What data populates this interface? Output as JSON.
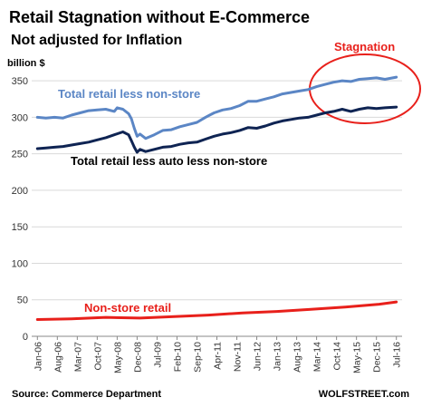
{
  "chart_data": {
    "type": "line",
    "title": "Retail Stagnation without E-Commerce",
    "subtitle": "Not adjusted for Inflation",
    "ylabel": "billion $",
    "ylim": [
      0,
      370
    ],
    "yticks": [
      0,
      50,
      100,
      150,
      200,
      250,
      300,
      350
    ],
    "grid": true,
    "x_tick_labels": [
      "Jan-06",
      "Aug-06",
      "Mar-07",
      "Oct-07",
      "May-08",
      "Dec-08",
      "Jul-09",
      "Feb-10",
      "Sep-10",
      "Apr-11",
      "Nov-11",
      "Jun-12",
      "Jan-13",
      "Aug-13",
      "Mar-14",
      "Oct-14",
      "May-15",
      "Dec-15",
      "Jul-16"
    ],
    "x_start": "Jan-06",
    "x_end": "Jul-16",
    "series": [
      {
        "name": "Total retail less non-store",
        "color": "#5b86c5",
        "values": [
          {
            "date": "Jan-06",
            "value": 300
          },
          {
            "date": "Apr-06",
            "value": 299
          },
          {
            "date": "Jul-06",
            "value": 300
          },
          {
            "date": "Oct-06",
            "value": 299
          },
          {
            "date": "Jan-07",
            "value": 303
          },
          {
            "date": "Apr-07",
            "value": 306
          },
          {
            "date": "Jul-07",
            "value": 309
          },
          {
            "date": "Oct-07",
            "value": 310
          },
          {
            "date": "Jan-08",
            "value": 311
          },
          {
            "date": "Apr-08",
            "value": 308
          },
          {
            "date": "May-08",
            "value": 313
          },
          {
            "date": "Jul-08",
            "value": 311
          },
          {
            "date": "Sep-08",
            "value": 305
          },
          {
            "date": "Oct-08",
            "value": 298
          },
          {
            "date": "Nov-08",
            "value": 285
          },
          {
            "date": "Dec-08",
            "value": 274
          },
          {
            "date": "Jan-09",
            "value": 277
          },
          {
            "date": "Mar-09",
            "value": 271
          },
          {
            "date": "Jun-09",
            "value": 276
          },
          {
            "date": "Sep-09",
            "value": 282
          },
          {
            "date": "Dec-09",
            "value": 283
          },
          {
            "date": "Mar-10",
            "value": 287
          },
          {
            "date": "Jun-10",
            "value": 290
          },
          {
            "date": "Sep-10",
            "value": 293
          },
          {
            "date": "Dec-10",
            "value": 300
          },
          {
            "date": "Mar-11",
            "value": 306
          },
          {
            "date": "Jun-11",
            "value": 310
          },
          {
            "date": "Sep-11",
            "value": 312
          },
          {
            "date": "Dec-11",
            "value": 316
          },
          {
            "date": "Mar-12",
            "value": 322
          },
          {
            "date": "Jun-12",
            "value": 322
          },
          {
            "date": "Sep-12",
            "value": 325
          },
          {
            "date": "Dec-12",
            "value": 328
          },
          {
            "date": "Mar-13",
            "value": 332
          },
          {
            "date": "Jun-13",
            "value": 334
          },
          {
            "date": "Sep-13",
            "value": 336
          },
          {
            "date": "Dec-13",
            "value": 338
          },
          {
            "date": "Mar-14",
            "value": 342
          },
          {
            "date": "Jun-14",
            "value": 345
          },
          {
            "date": "Sep-14",
            "value": 348
          },
          {
            "date": "Dec-14",
            "value": 350
          },
          {
            "date": "Mar-15",
            "value": 349
          },
          {
            "date": "Jun-15",
            "value": 352
          },
          {
            "date": "Sep-15",
            "value": 353
          },
          {
            "date": "Dec-15",
            "value": 354
          },
          {
            "date": "Mar-16",
            "value": 352
          },
          {
            "date": "Jul-16",
            "value": 355
          }
        ]
      },
      {
        "name": "Total retail less auto less non-store",
        "color": "#0f2453",
        "values": [
          {
            "date": "Jan-06",
            "value": 257
          },
          {
            "date": "Apr-06",
            "value": 258
          },
          {
            "date": "Jul-06",
            "value": 259
          },
          {
            "date": "Oct-06",
            "value": 260
          },
          {
            "date": "Jan-07",
            "value": 262
          },
          {
            "date": "Apr-07",
            "value": 264
          },
          {
            "date": "Jul-07",
            "value": 266
          },
          {
            "date": "Oct-07",
            "value": 269
          },
          {
            "date": "Jan-08",
            "value": 272
          },
          {
            "date": "Apr-08",
            "value": 276
          },
          {
            "date": "Jul-08",
            "value": 280
          },
          {
            "date": "Sep-08",
            "value": 276
          },
          {
            "date": "Oct-08",
            "value": 268
          },
          {
            "date": "Nov-08",
            "value": 259
          },
          {
            "date": "Dec-08",
            "value": 252
          },
          {
            "date": "Jan-09",
            "value": 256
          },
          {
            "date": "Mar-09",
            "value": 253
          },
          {
            "date": "Jun-09",
            "value": 256
          },
          {
            "date": "Sep-09",
            "value": 259
          },
          {
            "date": "Dec-09",
            "value": 260
          },
          {
            "date": "Mar-10",
            "value": 263
          },
          {
            "date": "Jun-10",
            "value": 265
          },
          {
            "date": "Sep-10",
            "value": 266
          },
          {
            "date": "Dec-10",
            "value": 270
          },
          {
            "date": "Mar-11",
            "value": 274
          },
          {
            "date": "Jun-11",
            "value": 277
          },
          {
            "date": "Sep-11",
            "value": 279
          },
          {
            "date": "Dec-11",
            "value": 282
          },
          {
            "date": "Mar-12",
            "value": 286
          },
          {
            "date": "Jun-12",
            "value": 285
          },
          {
            "date": "Sep-12",
            "value": 288
          },
          {
            "date": "Dec-12",
            "value": 292
          },
          {
            "date": "Mar-13",
            "value": 295
          },
          {
            "date": "Jun-13",
            "value": 297
          },
          {
            "date": "Sep-13",
            "value": 299
          },
          {
            "date": "Dec-13",
            "value": 300
          },
          {
            "date": "Mar-14",
            "value": 303
          },
          {
            "date": "Jun-14",
            "value": 306
          },
          {
            "date": "Sep-14",
            "value": 308
          },
          {
            "date": "Dec-14",
            "value": 311
          },
          {
            "date": "Mar-15",
            "value": 308
          },
          {
            "date": "Jun-15",
            "value": 311
          },
          {
            "date": "Sep-15",
            "value": 313
          },
          {
            "date": "Dec-15",
            "value": 312
          },
          {
            "date": "Mar-16",
            "value": 313
          },
          {
            "date": "Jul-16",
            "value": 314
          }
        ]
      },
      {
        "name": "Non-store retail",
        "color": "#e8201b",
        "values": [
          {
            "date": "Jan-06",
            "value": 23
          },
          {
            "date": "Jan-07",
            "value": 24
          },
          {
            "date": "Jan-08",
            "value": 26
          },
          {
            "date": "Jan-09",
            "value": 25
          },
          {
            "date": "Jan-10",
            "value": 27
          },
          {
            "date": "Jan-11",
            "value": 29
          },
          {
            "date": "Jan-12",
            "value": 32
          },
          {
            "date": "Jan-13",
            "value": 34
          },
          {
            "date": "Jan-14",
            "value": 37
          },
          {
            "date": "Jan-15",
            "value": 40
          },
          {
            "date": "Jan-16",
            "value": 44
          },
          {
            "date": "Jul-16",
            "value": 47
          }
        ]
      }
    ],
    "annotation": {
      "text": "Stagnation",
      "color": "#e8201b"
    },
    "source": "Source: Commerce Department",
    "credit": "WOLFSTREET.com"
  }
}
